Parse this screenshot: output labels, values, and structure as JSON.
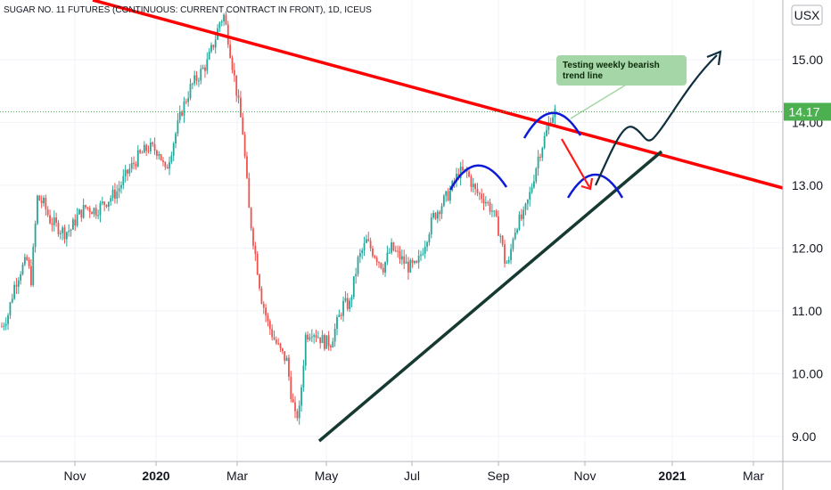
{
  "chart_data": {
    "type": "candlestick",
    "title": "SUGAR NO. 11 FUTURES (CONTINUOUS: CURRENT CONTRACT IN FRONT), 1D, ICEUS",
    "currency_badge": "USX",
    "ylim": [
      8.6,
      15.95
    ],
    "y_ticks": [
      "15.00",
      "14.00",
      "13.00",
      "12.00",
      "11.00",
      "10.00",
      "9.00"
    ],
    "y_tick_values": [
      15,
      14,
      13,
      12,
      11,
      10,
      9
    ],
    "last_price_label": "14.17",
    "last_price": 14.17,
    "x_labels": [
      "Nov",
      "2020",
      "Mar",
      "May",
      "Jul",
      "Sep",
      "Nov",
      "2021",
      "Mar"
    ],
    "annotation": "Testing weekly bearish\ntrend line",
    "annotation_lines": [
      "Testing weekly bearish",
      "trend line"
    ],
    "colors": {
      "up": "#26a69a",
      "down": "#ef5350",
      "resistance": "#ff0000",
      "support": "#163a32",
      "arcs": "#0d1bd6",
      "arrow_red": "#ff1a1a",
      "projection": "#0f2f3f",
      "note_bg": "#a5d6a7",
      "price_tag": "#4caf50"
    },
    "price_path": [
      [
        0,
        10.75
      ],
      [
        3,
        10.95
      ],
      [
        6,
        11.4
      ],
      [
        9,
        11.65
      ],
      [
        12,
        11.8
      ],
      [
        14,
        11.5
      ],
      [
        17,
        12.8
      ],
      [
        20,
        12.7
      ],
      [
        23,
        12.45
      ],
      [
        26,
        12.35
      ],
      [
        30,
        12.25
      ],
      [
        33,
        12.3
      ],
      [
        36,
        12.5
      ],
      [
        40,
        12.65
      ],
      [
        45,
        12.6
      ],
      [
        50,
        12.75
      ],
      [
        55,
        12.9
      ],
      [
        60,
        13.2
      ],
      [
        65,
        13.45
      ],
      [
        70,
        13.6
      ],
      [
        75,
        13.55
      ],
      [
        78,
        13.2
      ],
      [
        82,
        13.7
      ],
      [
        86,
        14.2
      ],
      [
        90,
        14.55
      ],
      [
        94,
        14.75
      ],
      [
        98,
        14.95
      ],
      [
        102,
        15.35
      ],
      [
        104,
        15.6
      ],
      [
        106,
        15.7
      ],
      [
        108,
        15.35
      ],
      [
        112,
        14.5
      ],
      [
        115,
        13.85
      ],
      [
        118,
        12.6
      ],
      [
        121,
        11.9
      ],
      [
        124,
        11.2
      ],
      [
        127,
        10.8
      ],
      [
        130,
        10.55
      ],
      [
        133,
        10.35
      ],
      [
        136,
        10.2
      ],
      [
        138,
        9.7
      ],
      [
        140,
        9.3
      ],
      [
        142,
        9.4
      ],
      [
        145,
        10.6
      ],
      [
        148,
        10.7
      ],
      [
        151,
        10.6
      ],
      [
        154,
        10.5
      ],
      [
        157,
        10.5
      ],
      [
        160,
        10.8
      ],
      [
        163,
        11.1
      ],
      [
        166,
        11.1
      ],
      [
        170,
        11.8
      ],
      [
        174,
        12.1
      ],
      [
        178,
        11.9
      ],
      [
        182,
        11.7
      ],
      [
        186,
        12.0
      ],
      [
        190,
        11.85
      ],
      [
        194,
        11.7
      ],
      [
        198,
        11.7
      ],
      [
        202,
        12.1
      ],
      [
        206,
        12.5
      ],
      [
        210,
        12.7
      ],
      [
        214,
        12.9
      ],
      [
        218,
        13.2
      ],
      [
        222,
        13.2
      ],
      [
        226,
        12.9
      ],
      [
        230,
        12.8
      ],
      [
        234,
        12.6
      ],
      [
        238,
        12.2
      ],
      [
        240,
        11.8
      ],
      [
        242,
        11.75
      ],
      [
        244,
        12.2
      ],
      [
        246,
        12.4
      ],
      [
        249,
        12.5
      ],
      [
        252,
        12.85
      ],
      [
        256,
        13.45
      ],
      [
        260,
        13.85
      ],
      [
        262,
        14.1
      ],
      [
        264,
        14.17
      ]
    ]
  }
}
